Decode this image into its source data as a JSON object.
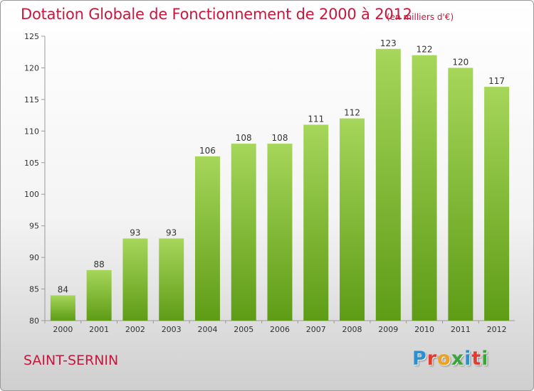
{
  "header": {
    "title": "Dotation Globale de Fonctionnement de 2000 à 2012",
    "unit": "(en milliers d'€)"
  },
  "footer": {
    "commune": "SAINT-SERNIN",
    "logo": {
      "letters": [
        "P",
        "r",
        "o",
        "x",
        "i",
        "t",
        "i"
      ],
      "colors": [
        "#2e8fd0",
        "#e53b2c",
        "#f0a020",
        "#3aa63a",
        "#2e8fd0",
        "#e53b2c",
        "#3aa63a"
      ]
    }
  },
  "colors": {
    "accent": "#c8173d",
    "bar_light": "#a6d65a",
    "bar_dark": "#5e9c16"
  },
  "chart_data": {
    "type": "bar",
    "categories": [
      "2000",
      "2001",
      "2002",
      "2003",
      "2004",
      "2005",
      "2006",
      "2007",
      "2008",
      "2009",
      "2010",
      "2011",
      "2012"
    ],
    "values": [
      84,
      88,
      93,
      93,
      106,
      108,
      108,
      111,
      112,
      123,
      122,
      120,
      117
    ],
    "ylim": [
      80,
      125
    ],
    "yticks": [
      80,
      85,
      90,
      95,
      100,
      105,
      110,
      115,
      120,
      125
    ],
    "grid": false,
    "legend": "none"
  }
}
